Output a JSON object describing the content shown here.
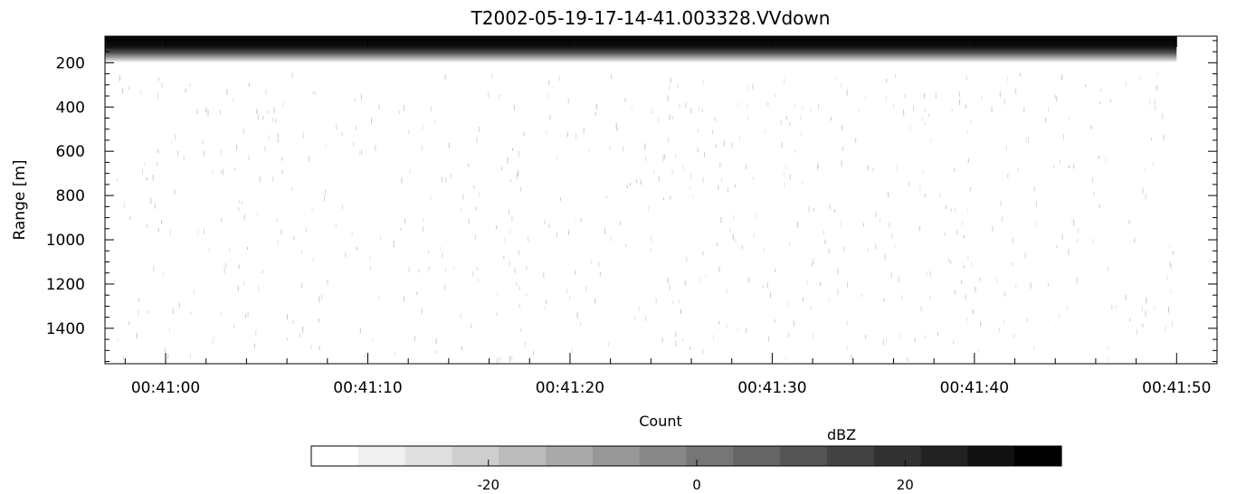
{
  "chart_data": {
    "type": "heatmap",
    "title": "T2002-05-19-17-14-41.003328.VVdown",
    "xlabel": "Count",
    "ylabel": "Range [m]",
    "x_ticks": [
      "00:41:00",
      "00:41:10",
      "00:41:20",
      "00:41:30",
      "00:41:40",
      "00:41:50"
    ],
    "x_range": [
      "00:40:57",
      "00:41:52"
    ],
    "y_ticks": [
      200,
      400,
      600,
      800,
      1000,
      1200,
      1400
    ],
    "y_range": [
      80,
      1560
    ],
    "y_reversed": true,
    "grid": false,
    "colorbar": {
      "label": "dBZ",
      "ticks": [
        -20,
        0,
        20
      ],
      "range": [
        -37,
        35
      ],
      "levels": 16,
      "colors": [
        "#ffffff",
        "#f0f0f0",
        "#e0e0e0",
        "#cecece",
        "#bcbcbc",
        "#aaaaaa",
        "#989898",
        "#878787",
        "#767676",
        "#656565",
        "#545454",
        "#434343",
        "#323232",
        "#222222",
        "#111111",
        "#000000"
      ]
    },
    "features": {
      "strong_echo_band_range_m": [
        90,
        200
      ],
      "strong_echo_level_dBZ": 35,
      "background_level_dBZ": -37,
      "data_ends_at": "00:41:50"
    }
  }
}
